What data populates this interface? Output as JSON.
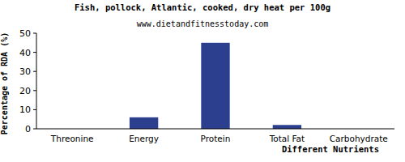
{
  "chart_data": {
    "type": "bar",
    "title": "Fish, pollock, Atlantic, cooked, dry heat per 100g",
    "subtitle": "www.dietandfitnesstoday.com",
    "xlabel": "Different Nutrients",
    "ylabel": "Percentage of RDA (%)",
    "categories": [
      "Threonine",
      "Energy",
      "Protein",
      "Total Fat",
      "Carbohydrate"
    ],
    "values": [
      0,
      6,
      45,
      2,
      0
    ],
    "color": "#2b3f8e",
    "ylim": [
      0,
      50
    ],
    "yticks": [
      0,
      10,
      20,
      30,
      40,
      50
    ],
    "grid": false
  }
}
